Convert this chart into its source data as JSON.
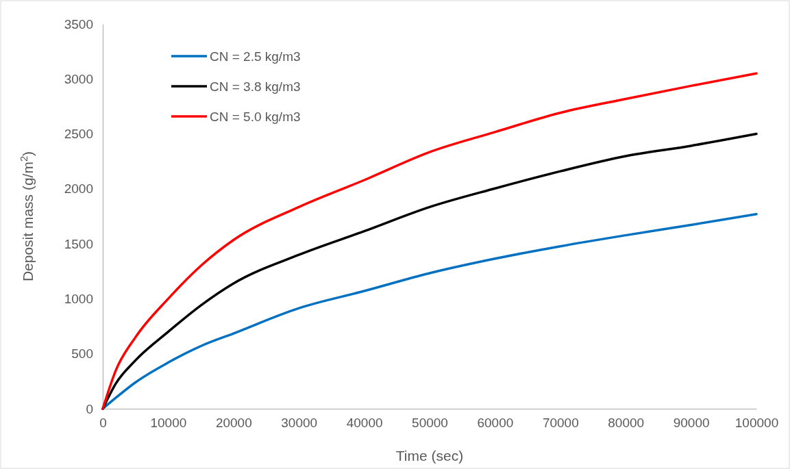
{
  "chart_data": {
    "type": "line",
    "xlabel": "Time (sec)",
    "ylabel": "Deposit mass (g/m$^{2}$)",
    "x": [
      0,
      2000,
      5000,
      10000,
      15000,
      20000,
      30000,
      40000,
      50000,
      60000,
      70000,
      80000,
      90000,
      100000
    ],
    "xlim": [
      0,
      100000
    ],
    "xticks": [
      0,
      10000,
      20000,
      30000,
      40000,
      50000,
      60000,
      70000,
      80000,
      90000,
      100000
    ],
    "ylim": [
      0,
      3500
    ],
    "yticks": [
      0,
      500,
      1000,
      1500,
      2000,
      2500,
      3000,
      3500
    ],
    "grid": false,
    "legend": "top left",
    "marker": "none",
    "line_style": "solid",
    "series": [
      {
        "name": "CN = 2.5 kg/m3",
        "color": "#0070c0",
        "values": [
          0,
          100,
          240,
          420,
          570,
          685,
          915,
          1071,
          1233,
          1365,
          1478,
          1578,
          1672,
          1770
        ]
      },
      {
        "name": "CN = 3.8 kg/m3",
        "color": "#000000",
        "values": [
          0,
          230,
          440,
          700,
          940,
          1140,
          1400,
          1615,
          1835,
          2004,
          2160,
          2298,
          2392,
          2500
        ]
      },
      {
        "name": "CN = 5.0 kg/m3",
        "color": "#ff0000",
        "values": [
          0,
          350,
          650,
          1000,
          1300,
          1535,
          1835,
          2080,
          2335,
          2517,
          2692,
          2818,
          2937,
          3050
        ]
      }
    ]
  }
}
